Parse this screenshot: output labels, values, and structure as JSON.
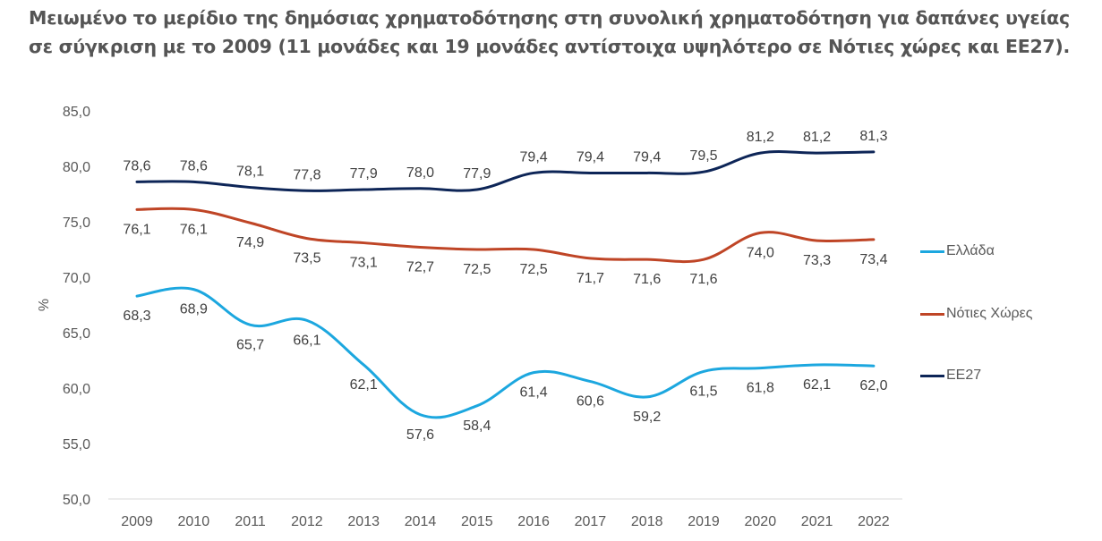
{
  "title": "Μειωμένο το μερίδιο της δημόσιας χρηματοδότησης στη συνολική χρηματοδότηση για δαπάνες υγείας σε σύγκριση με το 2009 (11 μονάδες και 19 μονάδες αντίστοιχα υψηλότερο σε Νότιες χώρες και ΕΕ27).",
  "chart_data": {
    "type": "line",
    "title": "Μειωμένο το μερίδιο της δημόσιας χρηματοδότησης στη συνολική χρηματοδότηση για δαπάνες υγείας σε σύγκριση με το 2009 (11 μονάδες και 19 μονάδες αντίστοιχα υψηλότερο σε Νότιες χώρες και ΕΕ27).",
    "xlabel": "",
    "ylabel": "%",
    "ylim": [
      50,
      85
    ],
    "yticks": [
      50,
      55,
      60,
      65,
      70,
      75,
      80,
      85
    ],
    "ytick_labels": [
      "50,0",
      "55,0",
      "60,0",
      "65,0",
      "70,0",
      "75,0",
      "80,0",
      "85,0"
    ],
    "categories": [
      "2009",
      "2010",
      "2011",
      "2012",
      "2013",
      "2014",
      "2015",
      "2016",
      "2017",
      "2018",
      "2019",
      "2020",
      "2021",
      "2022"
    ],
    "grid": false,
    "smooth": true,
    "legend_position": "right",
    "series": [
      {
        "name": "Ελλάδα",
        "color": "#1CA7DF",
        "label_position": "below",
        "values": [
          68.3,
          68.9,
          65.7,
          66.1,
          62.1,
          57.6,
          58.4,
          61.4,
          60.6,
          59.2,
          61.5,
          61.8,
          62.1,
          62.0
        ],
        "labels": [
          "68,3",
          "68,9",
          "65,7",
          "66,1",
          "62,1",
          "57,6",
          "58,4",
          "61,4",
          "60,6",
          "59,2",
          "61,5",
          "61,8",
          "62,1",
          "62,0"
        ]
      },
      {
        "name": "Νότιες Χώρες",
        "color": "#BF4526",
        "label_position": "below",
        "values": [
          76.1,
          76.1,
          74.9,
          73.5,
          73.1,
          72.7,
          72.5,
          72.5,
          71.7,
          71.6,
          71.6,
          74.0,
          73.3,
          73.4
        ],
        "labels": [
          "76,1",
          "76,1",
          "74,9",
          "73,5",
          "73,1",
          "72,7",
          "72,5",
          "72,5",
          "71,7",
          "71,6",
          "71,6",
          "74,0",
          "73,3",
          "73,4"
        ]
      },
      {
        "name": "ΕΕ27",
        "color": "#0D2557",
        "label_position": "above",
        "values": [
          78.6,
          78.6,
          78.1,
          77.8,
          77.9,
          78.0,
          77.9,
          79.4,
          79.4,
          79.4,
          79.5,
          81.2,
          81.2,
          81.3
        ],
        "labels": [
          "78,6",
          "78,6",
          "78,1",
          "77,8",
          "77,9",
          "78,0",
          "77,9",
          "79,4",
          "79,4",
          "79,4",
          "79,5",
          "81,2",
          "81,2",
          "81,3"
        ]
      }
    ]
  }
}
